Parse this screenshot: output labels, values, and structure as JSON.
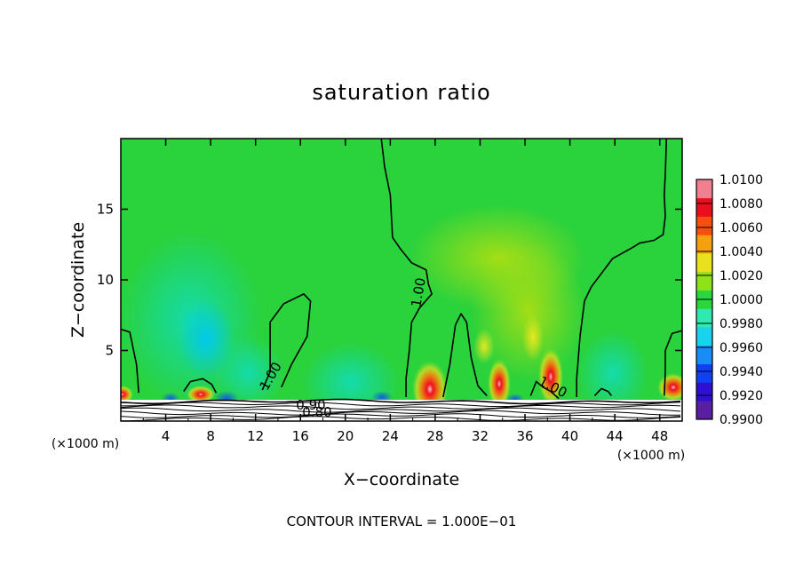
{
  "chart_data": {
    "type": "heatmap",
    "title": "saturation ratio",
    "xlabel": "X−coordinate",
    "ylabel": "Z−coordinate",
    "x_unit": "(×1000 m)",
    "z_unit": "(×1000 m)",
    "xlim": [
      0,
      50
    ],
    "ylim": [
      0,
      20
    ],
    "x_ticks": [
      "4",
      "8",
      "12",
      "16",
      "20",
      "24",
      "28",
      "32",
      "36",
      "40",
      "44",
      "48"
    ],
    "y_ticks": [
      "5",
      "10",
      "15"
    ],
    "x_tick_values": [
      4,
      8,
      12,
      16,
      20,
      24,
      28,
      32,
      36,
      40,
      44,
      48
    ],
    "y_tick_values": [
      5,
      10,
      15
    ],
    "colorbar": {
      "labels": [
        "1.0100",
        "1.0080",
        "1.0060",
        "1.0040",
        "1.0020",
        "1.0000",
        "0.9980",
        "0.9960",
        "0.9940",
        "0.9920",
        "0.9900"
      ],
      "min": 0.99,
      "max": 1.01,
      "colors": [
        "#5a1ea0",
        "#2e10d0",
        "#1040f0",
        "#1a8cf5",
        "#1ad2f0",
        "#30e8b0",
        "#28d83c",
        "#90e01a",
        "#e8e020",
        "#f5a010",
        "#f55010",
        "#e8101e",
        "#f08090"
      ]
    },
    "contour_labels": [
      "1.00",
      "1.00",
      "1.00",
      "0.90",
      "0.80"
    ],
    "contour_lines": [
      {
        "level": 1.0,
        "points": [
          [
            0,
            6.5
          ],
          [
            0.8,
            6.3
          ],
          [
            1.4,
            4
          ],
          [
            1.6,
            2
          ]
        ]
      },
      {
        "level": 1.0,
        "points": [
          [
            5.6,
            2.1
          ],
          [
            6.2,
            2.8
          ],
          [
            7.3,
            3
          ],
          [
            8.1,
            2.6
          ],
          [
            8.5,
            2
          ]
        ]
      },
      {
        "level": 1.0,
        "points": [
          [
            12.6,
            2.2
          ],
          [
            13.3,
            3.5
          ],
          [
            13.3,
            7
          ],
          [
            14.5,
            8.3
          ],
          [
            16.3,
            9
          ],
          [
            16.9,
            8.5
          ],
          [
            16.6,
            6
          ],
          [
            15.2,
            4
          ],
          [
            14.3,
            2.4
          ]
        ]
      },
      {
        "level": 1.0,
        "points": [
          [
            23.2,
            20
          ],
          [
            23.5,
            18
          ],
          [
            24,
            16
          ],
          [
            24.2,
            13
          ],
          [
            24.9,
            12.2
          ],
          [
            25.9,
            11.2
          ],
          [
            27.2,
            10.7
          ],
          [
            27.4,
            9.7
          ],
          [
            27.7,
            9
          ],
          [
            26.6,
            8
          ],
          [
            25.9,
            7
          ],
          [
            25.7,
            5
          ],
          [
            25.4,
            3
          ],
          [
            25.4,
            1.7
          ]
        ]
      },
      {
        "level": 1.0,
        "points": [
          [
            28.7,
            1.7
          ],
          [
            29.3,
            4
          ],
          [
            29.8,
            6.8
          ],
          [
            30.3,
            7.6
          ],
          [
            30.8,
            7
          ],
          [
            31.2,
            4.5
          ],
          [
            31.8,
            2.5
          ],
          [
            32.6,
            1.8
          ]
        ]
      },
      {
        "level": 1.0,
        "points": [
          [
            36.5,
            1.8
          ],
          [
            37,
            2.8
          ],
          [
            37.6,
            2.4
          ],
          [
            38.3,
            2.1
          ],
          [
            39,
            1.6
          ]
        ]
      },
      {
        "level": 1.0,
        "points": [
          [
            40.6,
            1.7
          ],
          [
            40.6,
            3
          ],
          [
            40.9,
            6
          ],
          [
            41.3,
            8.5
          ],
          [
            41.9,
            9.5
          ],
          [
            43.8,
            11.5
          ],
          [
            45.6,
            12.3
          ],
          [
            46.2,
            12.6
          ],
          [
            47.5,
            12.8
          ],
          [
            48.3,
            13.2
          ],
          [
            48.5,
            14.5
          ],
          [
            48.4,
            16
          ],
          [
            48.5,
            17.5
          ],
          [
            48.6,
            20
          ]
        ]
      },
      {
        "level": 1.0,
        "points": [
          [
            42.2,
            1.8
          ],
          [
            42.8,
            2.3
          ],
          [
            43.4,
            2.1
          ],
          [
            43.7,
            1.8
          ]
        ]
      },
      {
        "level": 1.0,
        "points": [
          [
            48.4,
            1.8
          ],
          [
            48.5,
            3.5
          ],
          [
            48.5,
            5
          ],
          [
            49.1,
            6.2
          ],
          [
            50,
            6.4
          ]
        ]
      }
    ],
    "note": "CONTOUR INTERVAL = 1.000E−01"
  }
}
